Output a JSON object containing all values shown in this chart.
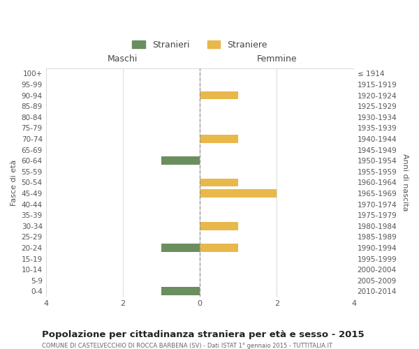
{
  "age_groups": [
    "100+",
    "95-99",
    "90-94",
    "85-89",
    "80-84",
    "75-79",
    "70-74",
    "65-69",
    "60-64",
    "55-59",
    "50-54",
    "45-49",
    "40-44",
    "35-39",
    "30-34",
    "25-29",
    "20-24",
    "15-19",
    "10-14",
    "5-9",
    "0-4"
  ],
  "birth_years": [
    "≤ 1914",
    "1915-1919",
    "1920-1924",
    "1925-1929",
    "1930-1934",
    "1935-1939",
    "1940-1944",
    "1945-1949",
    "1950-1954",
    "1955-1959",
    "1960-1964",
    "1965-1969",
    "1970-1974",
    "1975-1979",
    "1980-1984",
    "1985-1989",
    "1990-1994",
    "1995-1999",
    "2000-2004",
    "2005-2009",
    "2010-2014"
  ],
  "maschi": [
    0,
    0,
    0,
    0,
    0,
    0,
    0,
    0,
    -1,
    0,
    0,
    0,
    0,
    0,
    0,
    0,
    -1,
    0,
    0,
    0,
    -1
  ],
  "femmine": [
    0,
    0,
    1,
    0,
    0,
    0,
    1,
    0,
    0,
    0,
    1,
    2,
    0,
    0,
    1,
    0,
    1,
    0,
    0,
    0,
    0
  ],
  "color_maschi": "#6b8e5e",
  "color_femmine": "#e8b84b",
  "title": "Popolazione per cittadinanza straniera per età e sesso - 2015",
  "subtitle": "COMUNE DI CASTELVECCHIO DI ROCCA BARBENA (SV) - Dati ISTAT 1° gennaio 2015 - TUTTITALIA.IT",
  "ylabel_left": "Fasce di età",
  "ylabel_right": "Anni di nascita",
  "xlabel_maschi": "Maschi",
  "xlabel_femmine": "Femmine",
  "legend_maschi": "Stranieri",
  "legend_femmine": "Straniere",
  "xlim": [
    -4,
    4
  ],
  "background_color": "#ffffff",
  "grid_color": "#cccccc",
  "bar_height": 0.75
}
